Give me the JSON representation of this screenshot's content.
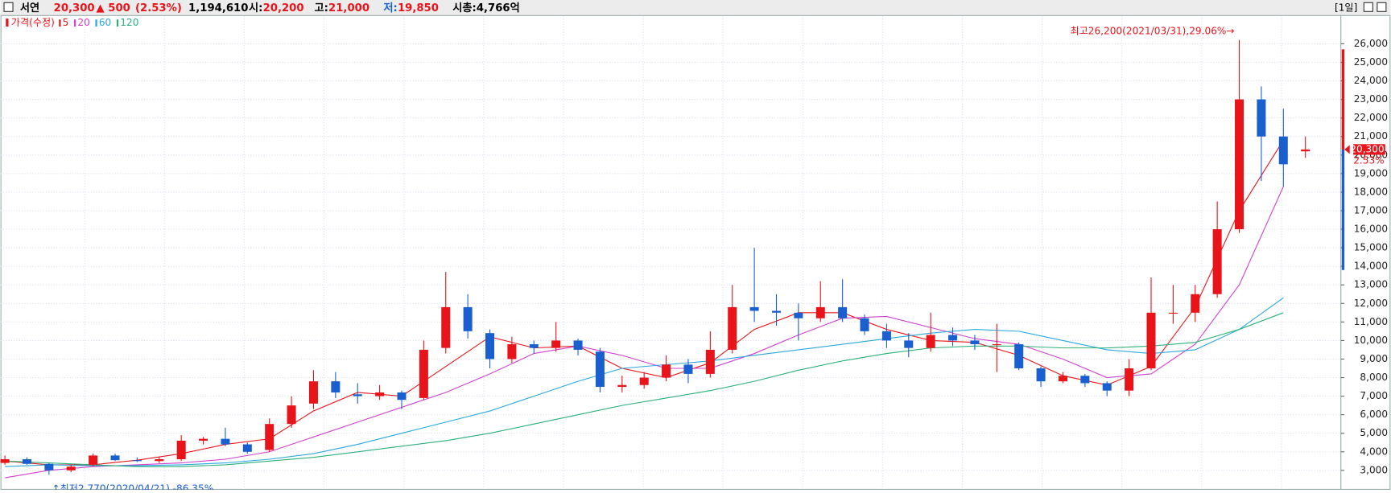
{
  "header": {
    "name": "서연",
    "price": "20,300",
    "change": "▲ 500",
    "change_pct": "(2.53%)",
    "volume": "1,194,610",
    "open": {
      "label": "시:",
      "value": "20,200"
    },
    "high": {
      "label": "고:",
      "value": "21,000"
    },
    "low": {
      "label": "저:",
      "value": "19,850"
    },
    "cap": "시총:4,766억",
    "period": "[1일]"
  },
  "chart_data": {
    "type": "candlestick",
    "up_color": "#e8141a",
    "down_color": "#1a5fd0",
    "price_legend": "가격(수정)",
    "open": [
      3400,
      3600,
      3350,
      3000,
      3300,
      3800,
      3550,
      3500,
      3600,
      4600,
      4700,
      4400,
      4100,
      5500,
      6600,
      7800,
      7100,
      7000,
      7200,
      6900,
      9600,
      11800,
      10400,
      9000,
      9800,
      9600,
      10000,
      9400,
      7500,
      7600,
      8000,
      8700,
      8200,
      9500,
      11800,
      11600,
      11500,
      11200,
      11800,
      11200,
      10500,
      10000,
      9600,
      10300,
      10000,
      9800,
      9800,
      8500,
      7800,
      8100,
      7700,
      7300,
      8500,
      11500,
      11500,
      12500,
      16000,
      23000,
      21000,
      20200
    ],
    "high": [
      3800,
      3700,
      3400,
      3300,
      3900,
      3900,
      3700,
      3700,
      4900,
      4800,
      5300,
      4500,
      5800,
      7000,
      8400,
      8300,
      7700,
      7600,
      7300,
      10000,
      13700,
      12500,
      10600,
      10200,
      10000,
      11000,
      10100,
      9600,
      8100,
      8300,
      9200,
      9000,
      10500,
      13000,
      15000,
      12500,
      12000,
      13200,
      13300,
      11400,
      10900,
      10400,
      11500,
      10700,
      10300,
      10900,
      9900,
      8600,
      8300,
      8200,
      7800,
      9000,
      13400,
      13000,
      13000,
      17500,
      26200,
      23700,
      22500,
      21000
    ],
    "low": [
      3300,
      3300,
      2770,
      2900,
      3200,
      3500,
      3450,
      3400,
      3500,
      4400,
      4300,
      3900,
      4000,
      5300,
      6300,
      6900,
      6600,
      6800,
      6300,
      6800,
      9300,
      10100,
      8500,
      8800,
      9300,
      9400,
      9200,
      7200,
      7200,
      7400,
      7800,
      7700,
      8000,
      9300,
      11000,
      10800,
      10000,
      11000,
      11000,
      10300,
      9600,
      9100,
      9400,
      9700,
      9500,
      8300,
      8400,
      7500,
      7700,
      7500,
      7000,
      7000,
      8400,
      10900,
      11000,
      12300,
      15800,
      18600,
      18300,
      19850
    ],
    "close": [
      3600,
      3350,
      3000,
      3200,
      3800,
      3550,
      3500,
      3600,
      4600,
      4700,
      4400,
      4000,
      5500,
      6500,
      7800,
      7200,
      7000,
      7200,
      6800,
      9500,
      11800,
      10500,
      9000,
      9800,
      9600,
      10000,
      9500,
      7500,
      7600,
      8000,
      8700,
      8200,
      9500,
      11800,
      11600,
      11500,
      11200,
      11800,
      11200,
      10500,
      10000,
      9600,
      10300,
      10000,
      9800,
      9800,
      8500,
      7800,
      8100,
      7700,
      7300,
      8500,
      11500,
      11500,
      12500,
      16000,
      23000,
      21000,
      19500,
      20300
    ],
    "series": [
      {
        "name": "5",
        "color": "#e8141a",
        "values": [
          3500,
          3300,
          3300,
          3550,
          3900,
          4400,
          4700,
          6200,
          7200,
          7000,
          8600,
          10200,
          9600,
          9700,
          8500,
          8000,
          8800,
          10600,
          11500,
          11500,
          10600,
          10000,
          9900,
          9200,
          8100,
          7600,
          8600,
          11800,
          17000,
          20800
        ]
      },
      {
        "name": "20",
        "color": "#d040d0",
        "values": [
          2600,
          3000,
          3200,
          3300,
          3400,
          3600,
          4000,
          4800,
          5600,
          6400,
          7200,
          8200,
          9300,
          9700,
          9200,
          8500,
          8500,
          9300,
          10300,
          11200,
          11300,
          10700,
          10100,
          9800,
          9000,
          8000,
          8200,
          9800,
          13000,
          18300
        ]
      },
      {
        "name": "60",
        "color": "#2aa8e0",
        "values": [
          3200,
          3300,
          3250,
          3250,
          3300,
          3400,
          3600,
          3900,
          4400,
          5000,
          5600,
          6200,
          7000,
          7800,
          8500,
          8700,
          8900,
          9200,
          9500,
          9800,
          10100,
          10400,
          10600,
          10500,
          10000,
          9500,
          9300,
          9500,
          10600,
          12300
        ]
      },
      {
        "name": "120",
        "color": "#2bb07a",
        "values": [
          3500,
          3400,
          3300,
          3200,
          3200,
          3300,
          3500,
          3700,
          4000,
          4300,
          4600,
          5000,
          5500,
          6000,
          6500,
          6900,
          7300,
          7800,
          8400,
          8900,
          9300,
          9600,
          9700,
          9700,
          9600,
          9600,
          9700,
          9900,
          10600,
          11500
        ]
      }
    ],
    "annotations": {
      "high": {
        "text": "최고26,200(2021/03/31),29.06%→",
        "value": 26200
      },
      "low": {
        "text": "↑최저2,770(2020/04/21),-86.35%",
        "value": 2770
      }
    },
    "last_price": {
      "value": 20300,
      "label": "20,300",
      "pct": "2.53%"
    },
    "ylim": [
      2000,
      27500
    ],
    "grid": true,
    "yticks": [
      {
        "value": 3000,
        "label": "3,000"
      },
      {
        "value": 4000,
        "label": "4,000"
      },
      {
        "value": 5000,
        "label": "5,000"
      },
      {
        "value": 6000,
        "label": "6,000"
      },
      {
        "value": 7000,
        "label": "7,000"
      },
      {
        "value": 8000,
        "label": "8,000"
      },
      {
        "value": 9000,
        "label": "9,000"
      },
      {
        "value": 10000,
        "label": "10,000"
      },
      {
        "value": 11000,
        "label": "11,000"
      },
      {
        "value": 12000,
        "label": "12,000"
      },
      {
        "value": 13000,
        "label": "13,000"
      },
      {
        "value": 14000,
        "label": "14,000"
      },
      {
        "value": 15000,
        "label": "15,000"
      },
      {
        "value": 16000,
        "label": "16,000"
      },
      {
        "value": 17000,
        "label": "17,000"
      },
      {
        "value": 18000,
        "label": "18,000"
      },
      {
        "value": 19000,
        "label": "19,000"
      },
      {
        "value": 20000,
        "label": "20,000"
      },
      {
        "value": 21000,
        "label": "21,000"
      },
      {
        "value": 22000,
        "label": "22,000"
      },
      {
        "value": 23000,
        "label": "23,000"
      },
      {
        "value": 24000,
        "label": "24,000"
      },
      {
        "value": 25000,
        "label": "25,000"
      },
      {
        "value": 26000,
        "label": "26,000"
      }
    ]
  }
}
